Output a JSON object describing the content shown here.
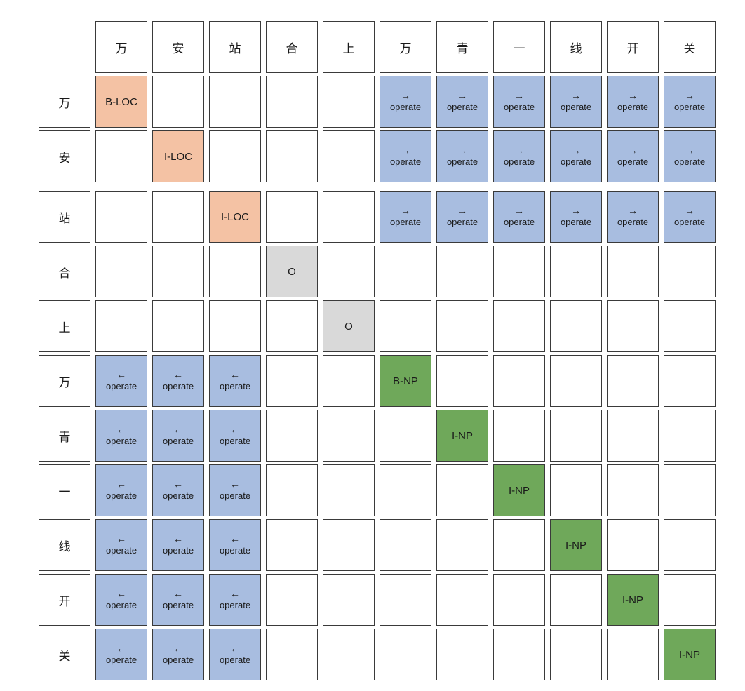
{
  "chars": [
    "万",
    "安",
    "站",
    "合",
    "上",
    "万",
    "青",
    "一",
    "线",
    "开",
    "关"
  ],
  "colors": {
    "loc": "#f4c2a4",
    "o": "#d9d9d9",
    "np": "#6fa85a",
    "operate": "#a8bde0",
    "border": "#3a3a3a",
    "empty": "#ffffff"
  },
  "labels": {
    "operate": "operate",
    "right_arrow": "→",
    "left_arrow": "←"
  },
  "tags": [
    {
      "row": 0,
      "col": 0,
      "text": "B-LOC",
      "kind": "loc"
    },
    {
      "row": 1,
      "col": 1,
      "text": "I-LOC",
      "kind": "loc"
    },
    {
      "row": 2,
      "col": 2,
      "text": "I-LOC",
      "kind": "loc"
    },
    {
      "row": 3,
      "col": 3,
      "text": "O",
      "kind": "o"
    },
    {
      "row": 4,
      "col": 4,
      "text": "O",
      "kind": "o"
    },
    {
      "row": 5,
      "col": 5,
      "text": "B-NP",
      "kind": "np"
    },
    {
      "row": 6,
      "col": 6,
      "text": "I-NP",
      "kind": "np"
    },
    {
      "row": 7,
      "col": 7,
      "text": "I-NP",
      "kind": "np"
    },
    {
      "row": 8,
      "col": 8,
      "text": "I-NP",
      "kind": "np"
    },
    {
      "row": 9,
      "col": 9,
      "text": "I-NP",
      "kind": "np"
    },
    {
      "row": 10,
      "col": 10,
      "text": "I-NP",
      "kind": "np"
    }
  ],
  "operate_blocks": [
    {
      "rows": [
        0,
        2
      ],
      "cols": [
        5,
        10
      ],
      "direction": "right"
    },
    {
      "rows": [
        5,
        10
      ],
      "cols": [
        0,
        2
      ],
      "direction": "left"
    }
  ]
}
